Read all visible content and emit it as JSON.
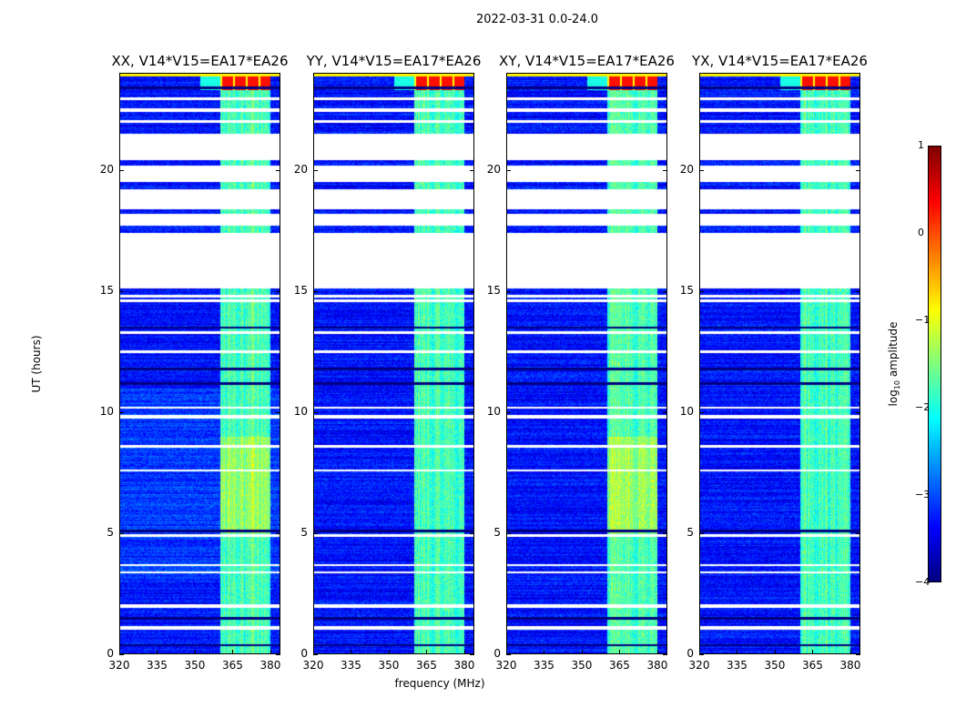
{
  "suptitle": "2022-03-31 0.0-24.0",
  "chart_data": {
    "type": "heatmap",
    "title": "2022-03-31 0.0-24.0",
    "xlabel": "frequency (MHz)",
    "ylabel": "UT (hours)",
    "xlim": [
      320,
      384
    ],
    "ylim": [
      0,
      24
    ],
    "xticks": [
      "320",
      "335",
      "350",
      "365",
      "380"
    ],
    "yticks": [
      "0",
      "5",
      "10",
      "15",
      "20"
    ],
    "panels": [
      {
        "title": "XX, V14*V15=EA17*EA26"
      },
      {
        "title": "YY, V14*V15=EA17*EA26"
      },
      {
        "title": "XY, V14*V15=EA17*EA26"
      },
      {
        "title": "YX, V14*V15=EA17*EA26"
      }
    ],
    "rfi_band_mhz": [
      360,
      380
    ],
    "background_log_amplitude": -3.3,
    "band_log_amplitude": -1.8,
    "early_top_band_log_amplitude": 0.3,
    "flagged_gaps_hours": [
      [
        20.4,
        21.5
      ],
      [
        19.5,
        20.2
      ],
      [
        18.4,
        19.2
      ],
      [
        17.7,
        18.2
      ],
      [
        15.1,
        17.4
      ],
      [
        22.4,
        22.55
      ],
      [
        21.95,
        22.05
      ],
      [
        22.9,
        23.0
      ],
      [
        14.55,
        14.65
      ],
      [
        14.75,
        14.85
      ],
      [
        13.25,
        13.35
      ],
      [
        12.45,
        12.55
      ],
      [
        10.15,
        10.25
      ],
      [
        9.75,
        9.9
      ],
      [
        8.55,
        8.65
      ],
      [
        7.55,
        7.65
      ],
      [
        4.85,
        4.98
      ],
      [
        3.65,
        3.75
      ],
      [
        3.35,
        3.45
      ],
      [
        1.95,
        2.08
      ],
      [
        1.05,
        1.18
      ]
    ],
    "dark_rows_hours": [
      0.4,
      1.5,
      5.1,
      11.2,
      11.8,
      13.5,
      23.4
    ],
    "colorbar": {
      "label": "log10 amplitude",
      "label_base": "log",
      "label_sub": "10",
      "label_rest": " amplitude",
      "range": [
        -4,
        1
      ],
      "ticks": [
        "1",
        "0",
        "−1",
        "−2",
        "−3",
        "−4"
      ]
    }
  }
}
